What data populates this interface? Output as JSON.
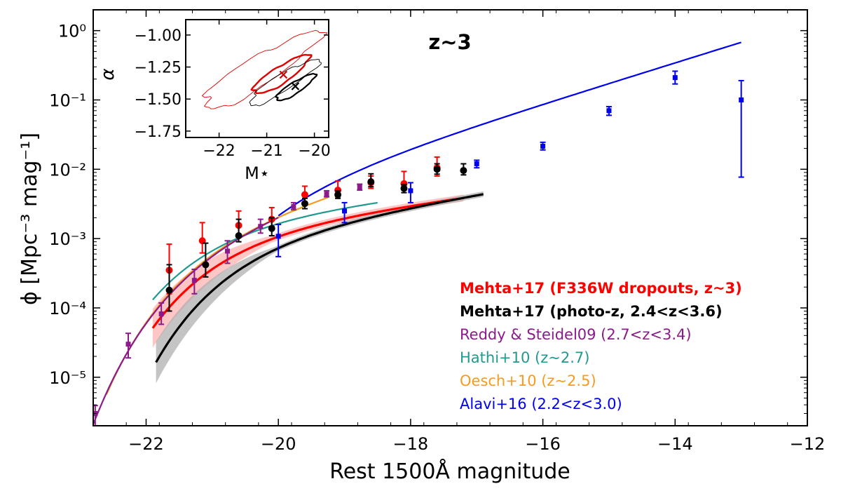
{
  "chart_data": {
    "type": "scatter",
    "annotation": "z~3",
    "xlabel": "Rest 1500Å magnitude",
    "ylabel": "ϕ [Mpc⁻³ mag⁻¹]",
    "xlim": [
      -22.8,
      -12
    ],
    "ylim_log10": [
      -5.7,
      0.3
    ],
    "log_y": true,
    "x_ticks": [
      -22,
      -20,
      -18,
      -16,
      -14,
      -12
    ],
    "y_ticks_log10": [
      -5,
      -4,
      -3,
      -2,
      -1,
      0
    ],
    "legend_position": "lower-right",
    "series": [
      {
        "name": "Mehta+17 (F336W dropouts, z~3)",
        "color": "#ff0000",
        "marker": "circle",
        "points": [
          {
            "x": -21.65,
            "y": 0.00035,
            "lo": 0.00016,
            "hi": 0.00083
          },
          {
            "x": -21.15,
            "y": 0.00093,
            "lo": 0.00062,
            "hi": 0.0017
          },
          {
            "x": -20.6,
            "y": 0.00155,
            "lo": 0.00115,
            "hi": 0.0025
          },
          {
            "x": -20.1,
            "y": 0.0019,
            "lo": 0.0015,
            "hi": 0.0028
          },
          {
            "x": -19.6,
            "y": 0.0043,
            "lo": 0.0034,
            "hi": 0.0057
          },
          {
            "x": -19.1,
            "y": 0.005,
            "lo": 0.004,
            "hi": 0.0068
          },
          {
            "x": -18.6,
            "y": 0.0064,
            "lo": 0.0053,
            "hi": 0.008
          },
          {
            "x": -18.1,
            "y": 0.0062,
            "lo": 0.005,
            "hi": 0.0093
          },
          {
            "x": -17.6,
            "y": 0.0105,
            "lo": 0.008,
            "hi": 0.015
          }
        ],
        "fit": {
          "phistar": 0.0016,
          "mstar": -20.7,
          "alpha": -1.31,
          "x_range": [
            -21.9,
            -17.2
          ]
        }
      },
      {
        "name": "Mehta+17 (photo-z, 2.4<z<3.6)",
        "color": "#000000",
        "marker": "circle",
        "points": [
          {
            "x": -21.65,
            "y": 0.00018,
            "lo": 9e-05,
            "hi": 0.00042
          },
          {
            "x": -21.1,
            "y": 0.00042,
            "lo": 0.00028,
            "hi": 0.00086
          },
          {
            "x": -20.6,
            "y": 0.0011,
            "lo": 0.0009,
            "hi": 0.0019
          },
          {
            "x": -20.1,
            "y": 0.0014,
            "lo": 0.0011,
            "hi": 0.002
          },
          {
            "x": -19.6,
            "y": 0.0032,
            "lo": 0.0027,
            "hi": 0.0038
          },
          {
            "x": -19.1,
            "y": 0.0043,
            "lo": 0.0038,
            "hi": 0.0049
          },
          {
            "x": -18.6,
            "y": 0.0066,
            "lo": 0.0056,
            "hi": 0.0086
          },
          {
            "x": -18.1,
            "y": 0.0053,
            "lo": 0.0046,
            "hi": 0.006
          },
          {
            "x": -17.6,
            "y": 0.01,
            "lo": 0.0085,
            "hi": 0.012
          },
          {
            "x": -17.2,
            "y": 0.0096,
            "lo": 0.0083,
            "hi": 0.012
          }
        ],
        "fit": {
          "phistar": 0.00136,
          "mstar": -20.4,
          "alpha": -1.4,
          "x_range": [
            -21.85,
            -16.9
          ]
        }
      },
      {
        "name": "Reddy & Steidel09 (2.7<z<3.4)",
        "color": "#8b1a8b",
        "marker": "square",
        "points": [
          {
            "x": -22.77,
            "y": 3e-06,
            "lo": 2e-06,
            "hi": 3.9e-06
          },
          {
            "x": -22.27,
            "y": 3e-05,
            "lo": 1.9e-05,
            "hi": 4.3e-05
          },
          {
            "x": -21.77,
            "y": 8.2e-05,
            "lo": 5.8e-05,
            "hi": 0.000118
          },
          {
            "x": -21.27,
            "y": 0.00025,
            "lo": 0.00016,
            "hi": 0.00036
          },
          {
            "x": -20.77,
            "y": 0.00066,
            "lo": 0.00044,
            "hi": 0.00093
          },
          {
            "x": -20.27,
            "y": 0.0015,
            "lo": 0.0012,
            "hi": 0.0019
          },
          {
            "x": -19.77,
            "y": 0.0029,
            "lo": 0.0026,
            "hi": 0.0033
          },
          {
            "x": -19.27,
            "y": 0.0044,
            "lo": 0.004,
            "hi": 0.0049
          },
          {
            "x": -18.77,
            "y": 0.0055,
            "lo": 0.005,
            "hi": 0.0061
          }
        ],
        "fit": {
          "phistar": 0.00171,
          "mstar": -20.97,
          "alpha": -1.73,
          "x_range": [
            -22.8,
            -20.0
          ]
        }
      },
      {
        "name": "Hathi+10 (z~2.7)",
        "color": "#20998f",
        "marker": "none",
        "points": [],
        "fit": {
          "phistar": 0.00219,
          "mstar": -20.91,
          "alpha": -1.27,
          "x_range": [
            -21.9,
            -18.5
          ]
        }
      },
      {
        "name": "Oesch+10 (z~2.5)",
        "color": "#f59b1f",
        "marker": "none",
        "points": [],
        "fit": {
          "phistar": 0.002,
          "mstar": -20.9,
          "alpha": -1.64,
          "x_range": [
            -22.6,
            -19.25
          ]
        }
      },
      {
        "name": "Alavi+16 (2.2<z<3.0)",
        "color": "#0000ee",
        "marker": "square",
        "points": [
          {
            "x": -20.0,
            "y": 0.00108,
            "lo": 0.00055,
            "hi": 0.0016
          },
          {
            "x": -19.0,
            "y": 0.0025,
            "lo": 0.0017,
            "hi": 0.0033
          },
          {
            "x": -18.0,
            "y": 0.0049,
            "lo": 0.0033,
            "hi": 0.0064
          },
          {
            "x": -17.0,
            "y": 0.012,
            "lo": 0.0105,
            "hi": 0.0135
          },
          {
            "x": -16.0,
            "y": 0.0215,
            "lo": 0.019,
            "hi": 0.0245
          },
          {
            "x": -15.0,
            "y": 0.07,
            "lo": 0.06,
            "hi": 0.08
          },
          {
            "x": -14.0,
            "y": 0.21,
            "lo": 0.17,
            "hi": 0.26
          },
          {
            "x": -13.0,
            "y": 0.1,
            "lo": 0.0077,
            "hi": 0.19
          }
        ],
        "fit": {
          "phistar": 0.0062,
          "mstar": -20.01,
          "alpha": -1.74,
          "x_range": [
            -20.0,
            -13.0
          ]
        }
      }
    ],
    "inset": {
      "xlabel": "M⋆",
      "ylabel": "α",
      "xlim": [
        -22.7,
        -19.7
      ],
      "ylim": [
        -1.8,
        -0.88
      ],
      "x_ticks": [
        -22,
        -21,
        -20
      ],
      "x_tick_labels": [
        "−22",
        "−21",
        "−20"
      ],
      "y_ticks": [
        -1.0,
        -1.25,
        -1.5,
        -1.75
      ],
      "y_tick_labels": [
        "−1.00",
        "−1.25",
        "−1.50",
        "−1.75"
      ],
      "red_marker": {
        "x": -20.65,
        "y": -1.31
      },
      "black_marker": {
        "x": -20.4,
        "y": -1.4
      }
    }
  }
}
